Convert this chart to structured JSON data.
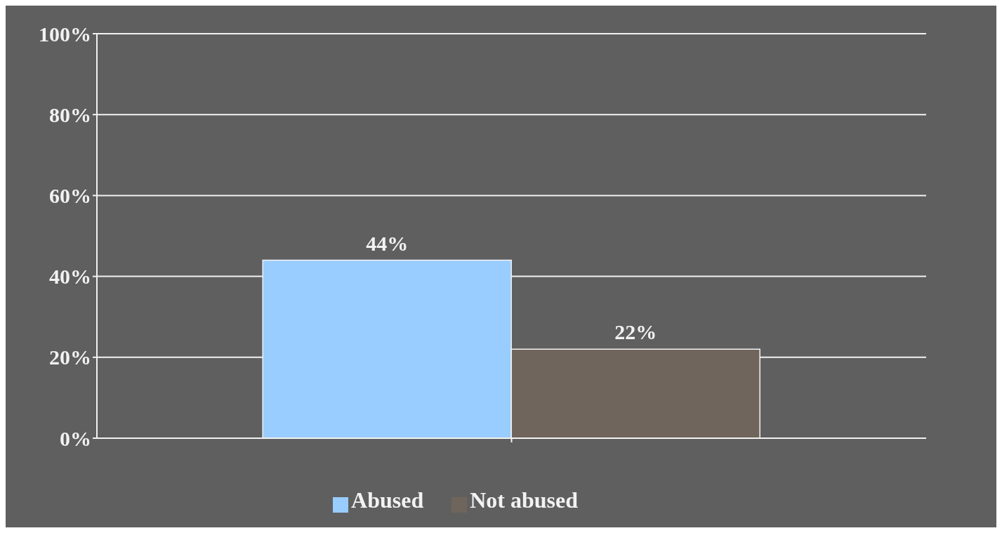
{
  "chart_data": {
    "type": "bar",
    "categories": [
      null
    ],
    "series": [
      {
        "name": "Abused",
        "color": "#99ccff",
        "values": [
          44
        ],
        "value_labels": [
          "44%"
        ]
      },
      {
        "name": "Not abused",
        "color": "#70655c",
        "values": [
          22
        ],
        "value_labels": [
          "22%"
        ]
      }
    ],
    "ylim": [
      0,
      100
    ],
    "yticks": [
      {
        "value": 0,
        "label": "0%"
      },
      {
        "value": 20,
        "label": "20%"
      },
      {
        "value": 40,
        "label": "40%"
      },
      {
        "value": 60,
        "label": "60%"
      },
      {
        "value": 80,
        "label": "80%"
      },
      {
        "value": 100,
        "label": "100%"
      }
    ],
    "grid": "y",
    "legend": "bottom"
  }
}
